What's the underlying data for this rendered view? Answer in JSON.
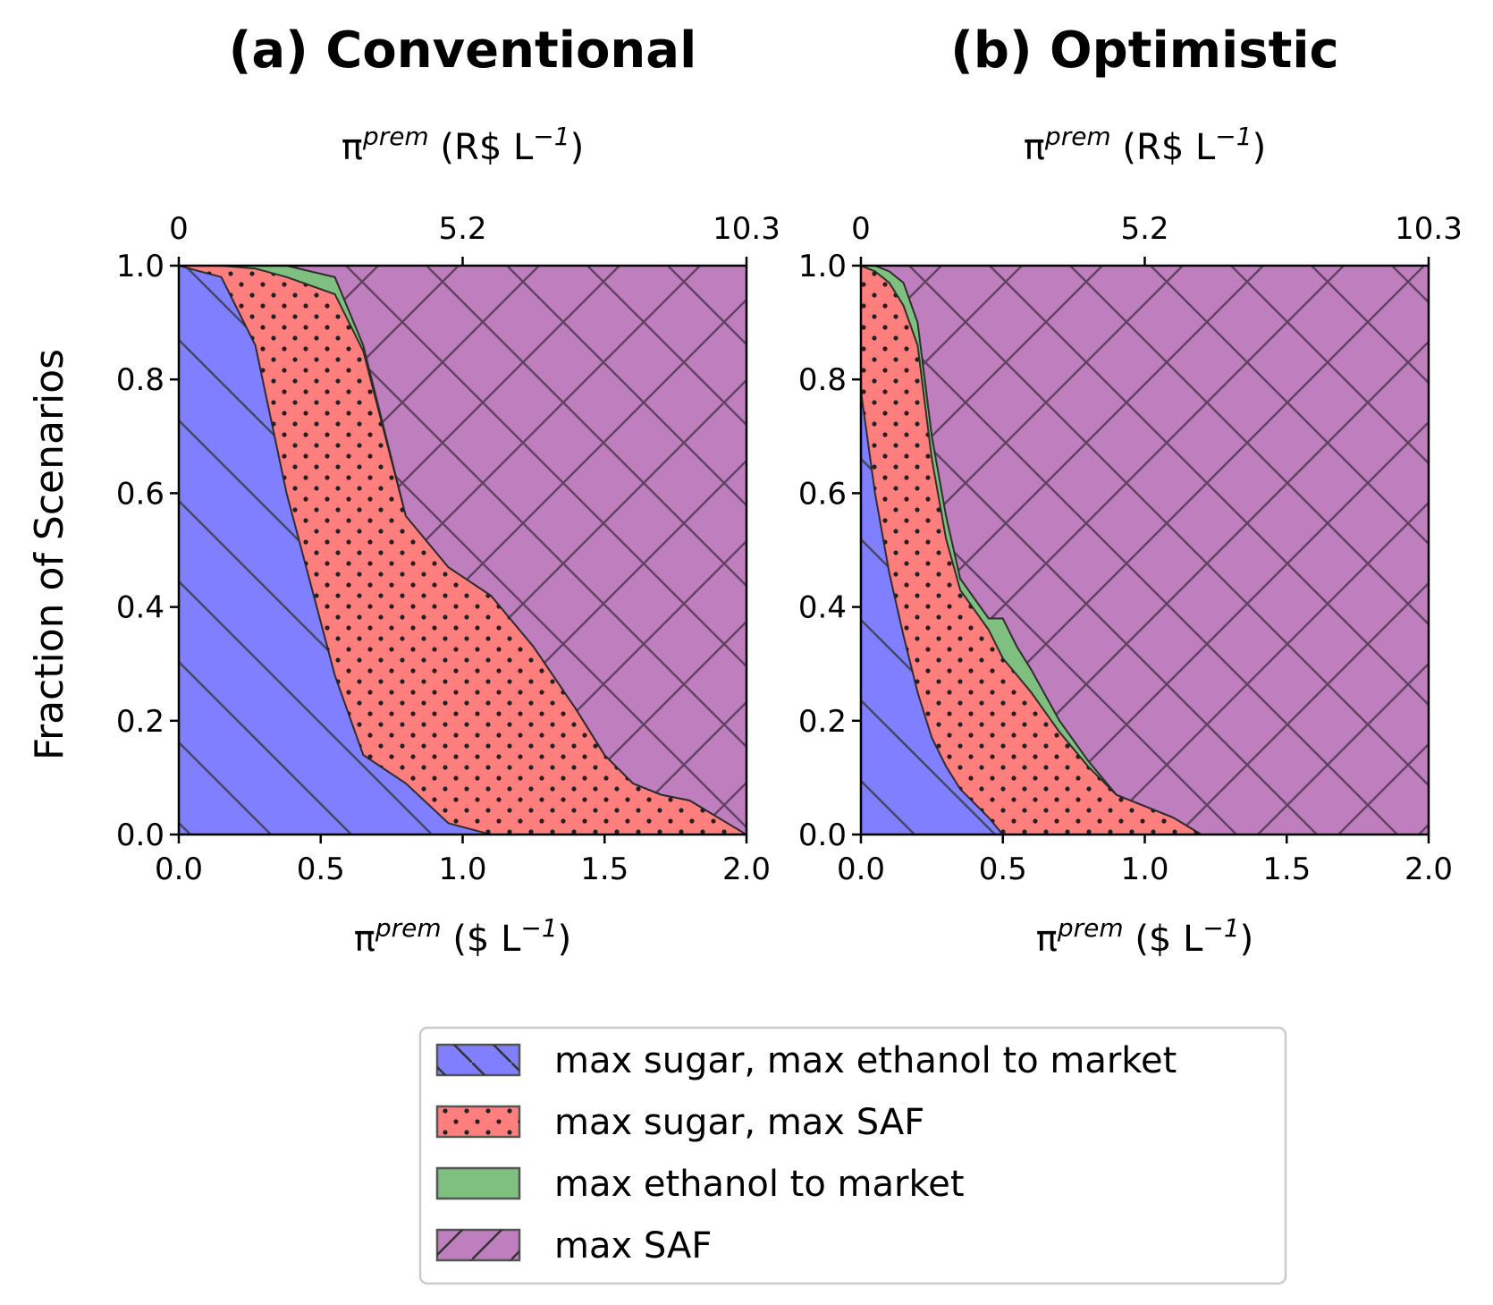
{
  "chart_data": {
    "type": "area",
    "ylabel": "Fraction of Scenarios",
    "legend": {
      "position": "bottom-center",
      "entries": [
        {
          "label": "max sugar, max ethanol to market",
          "color": "#7f7fff",
          "hatch": "backslash"
        },
        {
          "label": "max sugar, max SAF",
          "color": "#ff7f7f",
          "hatch": "dots"
        },
        {
          "label": "max ethanol to market",
          "color": "#7fbf7f",
          "hatch": "none"
        },
        {
          "label": "max SAF",
          "color": "#bf7fbf",
          "hatch": "cross"
        }
      ]
    },
    "panels": [
      {
        "title": "(a) Conventional",
        "xlabel": "π^prem ($ L^-1)",
        "xlabel_top": "π^prem (R$ L^-1)",
        "xlim": [
          0,
          2.0
        ],
        "ylim": [
          0,
          1.0
        ],
        "xticks": [
          "0.0",
          "0.5",
          "1.0",
          "1.5",
          "2.0"
        ],
        "yticks": [
          "0.0",
          "0.2",
          "0.4",
          "0.6",
          "0.8",
          "1.0"
        ],
        "xticks_top": [
          "0",
          "5.2",
          "10.3"
        ],
        "boundary_x": [
          0.0,
          0.15,
          0.27,
          0.38,
          0.55,
          0.65,
          0.8,
          0.95,
          1.1,
          1.25,
          1.4,
          1.5,
          1.6,
          1.7,
          1.8,
          1.9,
          2.0
        ],
        "series": [
          {
            "name": "max sugar, max ethanol to market",
            "upper": [
              1.0,
              0.98,
              0.86,
              0.6,
              0.28,
              0.14,
              0.09,
              0.02,
              0.0,
              0.0,
              0.0,
              0.0,
              0.0,
              0.0,
              0.0,
              0.0,
              0.0
            ]
          },
          {
            "name": "max sugar, max SAF",
            "upper": [
              1.0,
              1.0,
              0.995,
              0.98,
              0.95,
              0.85,
              0.56,
              0.47,
              0.42,
              0.33,
              0.22,
              0.14,
              0.09,
              0.07,
              0.06,
              0.03,
              0.0
            ]
          },
          {
            "name": "max ethanol to market",
            "upper": [
              1.0,
              1.0,
              1.0,
              1.0,
              0.98,
              0.86,
              0.56,
              0.47,
              0.42,
              0.33,
              0.22,
              0.14,
              0.09,
              0.07,
              0.06,
              0.03,
              0.0
            ]
          },
          {
            "name": "max SAF",
            "upper": [
              1.0,
              1.0,
              1.0,
              1.0,
              1.0,
              1.0,
              1.0,
              1.0,
              1.0,
              1.0,
              1.0,
              1.0,
              1.0,
              1.0,
              1.0,
              1.0,
              1.0
            ]
          }
        ]
      },
      {
        "title": "(b) Optimistic",
        "xlabel": "π^prem ($ L^-1)",
        "xlabel_top": "π^prem (R$ L^-1)",
        "xlim": [
          0,
          2.0
        ],
        "ylim": [
          0,
          1.0
        ],
        "xticks": [
          "0.0",
          "0.5",
          "1.0",
          "1.5",
          "2.0"
        ],
        "yticks": [
          "0.0",
          "0.2",
          "0.4",
          "0.6",
          "0.8",
          "1.0"
        ],
        "xticks_top": [
          "0",
          "5.2",
          "10.3"
        ],
        "boundary_x": [
          0.0,
          0.05,
          0.1,
          0.15,
          0.2,
          0.25,
          0.3,
          0.35,
          0.45,
          0.5,
          0.55,
          0.6,
          0.7,
          0.8,
          0.9,
          1.0,
          1.1,
          1.2,
          2.0
        ],
        "series": [
          {
            "name": "max sugar, max ethanol to market",
            "upper": [
              0.78,
              0.6,
              0.46,
              0.35,
              0.25,
              0.17,
              0.12,
              0.08,
              0.03,
              0.0,
              0.0,
              0.0,
              0.0,
              0.0,
              0.0,
              0.0,
              0.0,
              0.0,
              0.0
            ]
          },
          {
            "name": "max sugar, max SAF",
            "upper": [
              1.0,
              0.99,
              0.97,
              0.93,
              0.86,
              0.66,
              0.52,
              0.43,
              0.36,
              0.31,
              0.28,
              0.25,
              0.18,
              0.12,
              0.07,
              0.05,
              0.03,
              0.0,
              0.0
            ]
          },
          {
            "name": "max ethanol to market",
            "upper": [
              1.0,
              1.0,
              0.99,
              0.97,
              0.9,
              0.7,
              0.56,
              0.45,
              0.38,
              0.38,
              0.33,
              0.29,
              0.2,
              0.13,
              0.07,
              0.05,
              0.03,
              0.0,
              0.0
            ]
          },
          {
            "name": "max SAF",
            "upper": [
              1.0,
              1.0,
              1.0,
              1.0,
              1.0,
              1.0,
              1.0,
              1.0,
              1.0,
              1.0,
              1.0,
              1.0,
              1.0,
              1.0,
              1.0,
              1.0,
              1.0,
              1.0,
              1.0
            ]
          }
        ]
      }
    ]
  }
}
